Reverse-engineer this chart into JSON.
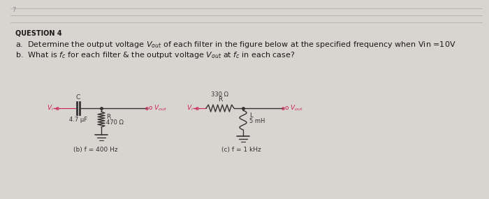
{
  "bg_outer": "#d8d5d0",
  "bg_inner": "#eceae6",
  "text_color": "#1a1a1a",
  "pink_color": "#cc2255",
  "dark_color": "#333333",
  "question_label": "QUESTION 4",
  "line_a": "a.  Determine the output voltage $V_{out}$ of each filter in the figure below at the specified frequency when Vin =10V",
  "line_b": "b.  What is $f_c$ for each filter & the output voltage $V_{out}$ at $f_c$ in each case?",
  "circuit1_label": "(b) f = 400 Hz",
  "circuit2_label": "(c) f = 1 kHz",
  "c1_cap_value": "4.7 μF",
  "c1_res_value": "470 Ω",
  "c2_res_value": "330 Ω",
  "c2_ind_value": "5 mH",
  "line_number": "7",
  "figw": 7.0,
  "figh": 2.85,
  "dpi": 100
}
